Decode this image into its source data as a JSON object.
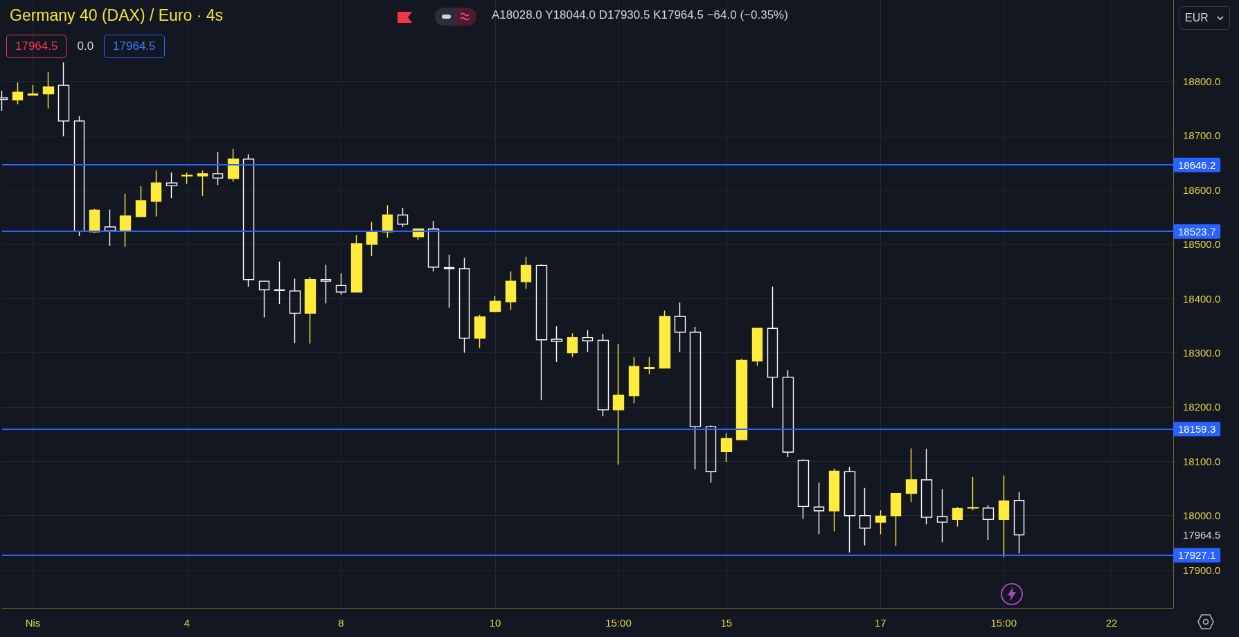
{
  "chart_data": {
    "type": "candlestick",
    "title": "Germany 40 (DAX) / Euro · 4s",
    "subtitle": "A18028.0 Y18044.0 D17930.5 K17964.5 −64.0 (−0.35%)",
    "ylabel": "EUR",
    "categories": [
      null,
      null,
      "Nis",
      null,
      null,
      null,
      null,
      null,
      null,
      null,
      null,
      null,
      "4",
      null,
      null,
      null,
      null,
      null,
      null,
      null,
      null,
      null,
      "8",
      null,
      null,
      null,
      null,
      null,
      null,
      null,
      null,
      null,
      "10",
      null,
      null,
      null,
      null,
      null,
      null,
      null,
      "15:00",
      null,
      null,
      null,
      null,
      null,
      null,
      "15",
      null,
      null,
      null,
      null,
      null,
      null,
      null,
      null,
      null,
      "17",
      null,
      null,
      null,
      null,
      null,
      null,
      null,
      "15:00",
      null,
      null,
      null,
      null,
      null,
      null,
      "22",
      null,
      null,
      null,
      null
    ],
    "ohlc": [
      [
        18770,
        18783,
        18746,
        18767
      ],
      [
        18766,
        18798,
        18758,
        18780
      ],
      [
        18775,
        18793,
        18774,
        18777
      ],
      [
        18777,
        18817,
        18750,
        18790
      ],
      [
        18793,
        18835,
        18699,
        18727
      ],
      [
        18727,
        18736,
        18515,
        18524
      ],
      [
        18523,
        18565,
        18521,
        18563
      ],
      [
        18532,
        18564,
        18497,
        18525
      ],
      [
        18524,
        18593,
        18495,
        18552
      ],
      [
        18551,
        18607,
        18550,
        18580
      ],
      [
        18579,
        18636,
        18551,
        18613
      ],
      [
        18613,
        18632,
        18585,
        18608
      ],
      [
        18626,
        18632,
        18611,
        18627
      ],
      [
        18626,
        18636,
        18589,
        18630
      ],
      [
        18630,
        18670,
        18609,
        18622
      ],
      [
        18621,
        18676,
        18615,
        18657
      ],
      [
        18657,
        18666,
        18422,
        18435
      ],
      [
        18432,
        18433,
        18365,
        18416
      ],
      [
        18416,
        18468,
        18390,
        18415
      ],
      [
        18414,
        18437,
        18318,
        18373
      ],
      [
        18373,
        18440,
        18317,
        18435
      ],
      [
        18435,
        18462,
        18391,
        18432
      ],
      [
        18424,
        18446,
        18407,
        18412
      ],
      [
        18412,
        18517,
        18411,
        18501
      ],
      [
        18500,
        18541,
        18478,
        18524
      ],
      [
        18523,
        18572,
        18512,
        18554
      ],
      [
        18554,
        18567,
        18532,
        18537
      ],
      [
        18514,
        18529,
        18508,
        18528
      ],
      [
        18528,
        18543,
        18450,
        18458
      ],
      [
        18457,
        18481,
        18383,
        18455
      ],
      [
        18455,
        18475,
        18300,
        18327
      ],
      [
        18327,
        18370,
        18309,
        18366
      ],
      [
        18376,
        18405,
        18375,
        18395
      ],
      [
        18394,
        18450,
        18379,
        18432
      ],
      [
        18431,
        18477,
        18418,
        18461
      ],
      [
        18461,
        18463,
        18213,
        18324
      ],
      [
        18325,
        18349,
        18283,
        18321
      ],
      [
        18300,
        18336,
        18292,
        18328
      ],
      [
        18328,
        18342,
        18302,
        18322
      ],
      [
        18323,
        18335,
        18183,
        18195
      ],
      [
        18195,
        18316,
        18094,
        18222
      ],
      [
        18221,
        18292,
        18207,
        18275
      ],
      [
        18271,
        18292,
        18261,
        18273
      ],
      [
        18272,
        18378,
        18271,
        18367
      ],
      [
        18367,
        18393,
        18302,
        18338
      ],
      [
        18338,
        18348,
        18085,
        18164
      ],
      [
        18164,
        18166,
        18061,
        18081
      ],
      [
        18118,
        18152,
        18099,
        18142
      ],
      [
        18140,
        18289,
        18139,
        18286
      ],
      [
        18285,
        18346,
        18276,
        18345
      ],
      [
        18345,
        18422,
        18199,
        18255
      ],
      [
        18255,
        18268,
        18108,
        18117
      ],
      [
        18102,
        18104,
        17994,
        18017
      ],
      [
        18016,
        18061,
        17966,
        18009
      ],
      [
        18009,
        18087,
        17971,
        18082
      ],
      [
        18081,
        18090,
        17932,
        18000
      ],
      [
        18000,
        18051,
        17945,
        17977
      ],
      [
        17988,
        18010,
        17966,
        17999
      ],
      [
        18000,
        18041,
        17944,
        18041
      ],
      [
        18041,
        18124,
        18025,
        18066
      ],
      [
        18066,
        18123,
        17984,
        17997
      ],
      [
        17998,
        18049,
        17951,
        17988
      ],
      [
        17993,
        18016,
        17980,
        18013
      ],
      [
        18014,
        18071,
        18010,
        18015
      ],
      [
        18014,
        18019,
        17955,
        17993
      ],
      [
        17993,
        18074,
        17924,
        18027
      ],
      [
        18028.0,
        18044.0,
        17930.5,
        17964.5
      ],
      null,
      null,
      null,
      null,
      null,
      null,
      null,
      null,
      null,
      null
    ],
    "colors": [
      "#ffffff",
      "#ffeb3b",
      "#ffeb3b",
      "#ffeb3b",
      "#ffffff",
      "#ffffff",
      "#ffeb3b",
      "#ffffff",
      "#ffeb3b",
      "#ffeb3b",
      "#ffeb3b",
      "#ffffff",
      "#ffeb3b",
      "#ffeb3b",
      "#ffffff",
      "#ffeb3b",
      "#ffffff",
      "#ffffff",
      "#ffffff",
      "#ffffff",
      "#ffeb3b",
      "#ffffff",
      "#ffffff",
      "#ffeb3b",
      "#ffeb3b",
      "#ffeb3b",
      "#ffffff",
      "#ffeb3b",
      "#ffffff",
      "#ffffff",
      "#ffffff",
      "#ffeb3b",
      "#ffeb3b",
      "#ffeb3b",
      "#ffeb3b",
      "#ffffff",
      "#ffffff",
      "#ffeb3b",
      "#ffffff",
      "#ffffff",
      "#ffeb3b",
      "#ffeb3b",
      "#ffeb3b",
      "#ffeb3b",
      "#ffffff",
      "#ffffff",
      "#ffffff",
      "#ffeb3b",
      "#ffeb3b",
      "#ffeb3b",
      "#ffffff",
      "#ffffff",
      "#ffffff",
      "#ffffff",
      "#ffeb3b",
      "#ffffff",
      "#ffffff",
      "#ffeb3b",
      "#ffeb3b",
      "#ffeb3b",
      "#ffffff",
      "#ffffff",
      "#ffeb3b",
      "#ffeb3b",
      "#ffffff",
      "#ffeb3b",
      "#ffffff",
      null,
      null,
      null,
      null,
      null,
      null,
      null,
      null,
      null,
      null
    ],
    "ylim": [
      17830,
      18950
    ],
    "yticks": [
      {
        "value": 17900,
        "label": "17900.0"
      },
      {
        "value": 17964.5,
        "label": "17964.5"
      },
      {
        "value": 18000,
        "label": "18000.0"
      },
      {
        "value": 18100,
        "label": "18100.0"
      },
      {
        "value": 18200,
        "label": "18200.0"
      },
      {
        "value": 18300,
        "label": "18300.0"
      },
      {
        "value": 18400,
        "label": "18400.0"
      },
      {
        "value": 18500,
        "label": "18500.0"
      },
      {
        "value": 18600,
        "label": "18600.0"
      },
      {
        "value": 18700,
        "label": "18700.0"
      },
      {
        "value": 18800,
        "label": "18800.0"
      }
    ],
    "ref_lines": [
      {
        "axis": "y",
        "value": 18646.2,
        "label": "18646.2",
        "color": "#2962ff"
      },
      {
        "axis": "y",
        "value": 18523.7,
        "label": "18523.7",
        "color": "#2962ff"
      },
      {
        "axis": "y",
        "value": 18159.3,
        "label": "18159.3",
        "color": "#2962ff"
      },
      {
        "axis": "y",
        "value": 17927.1,
        "label": "17927.1",
        "color": "#2962ff"
      }
    ],
    "annotations": [
      "17964.5",
      "0.0",
      "17964.5"
    ],
    "grid": true
  }
}
